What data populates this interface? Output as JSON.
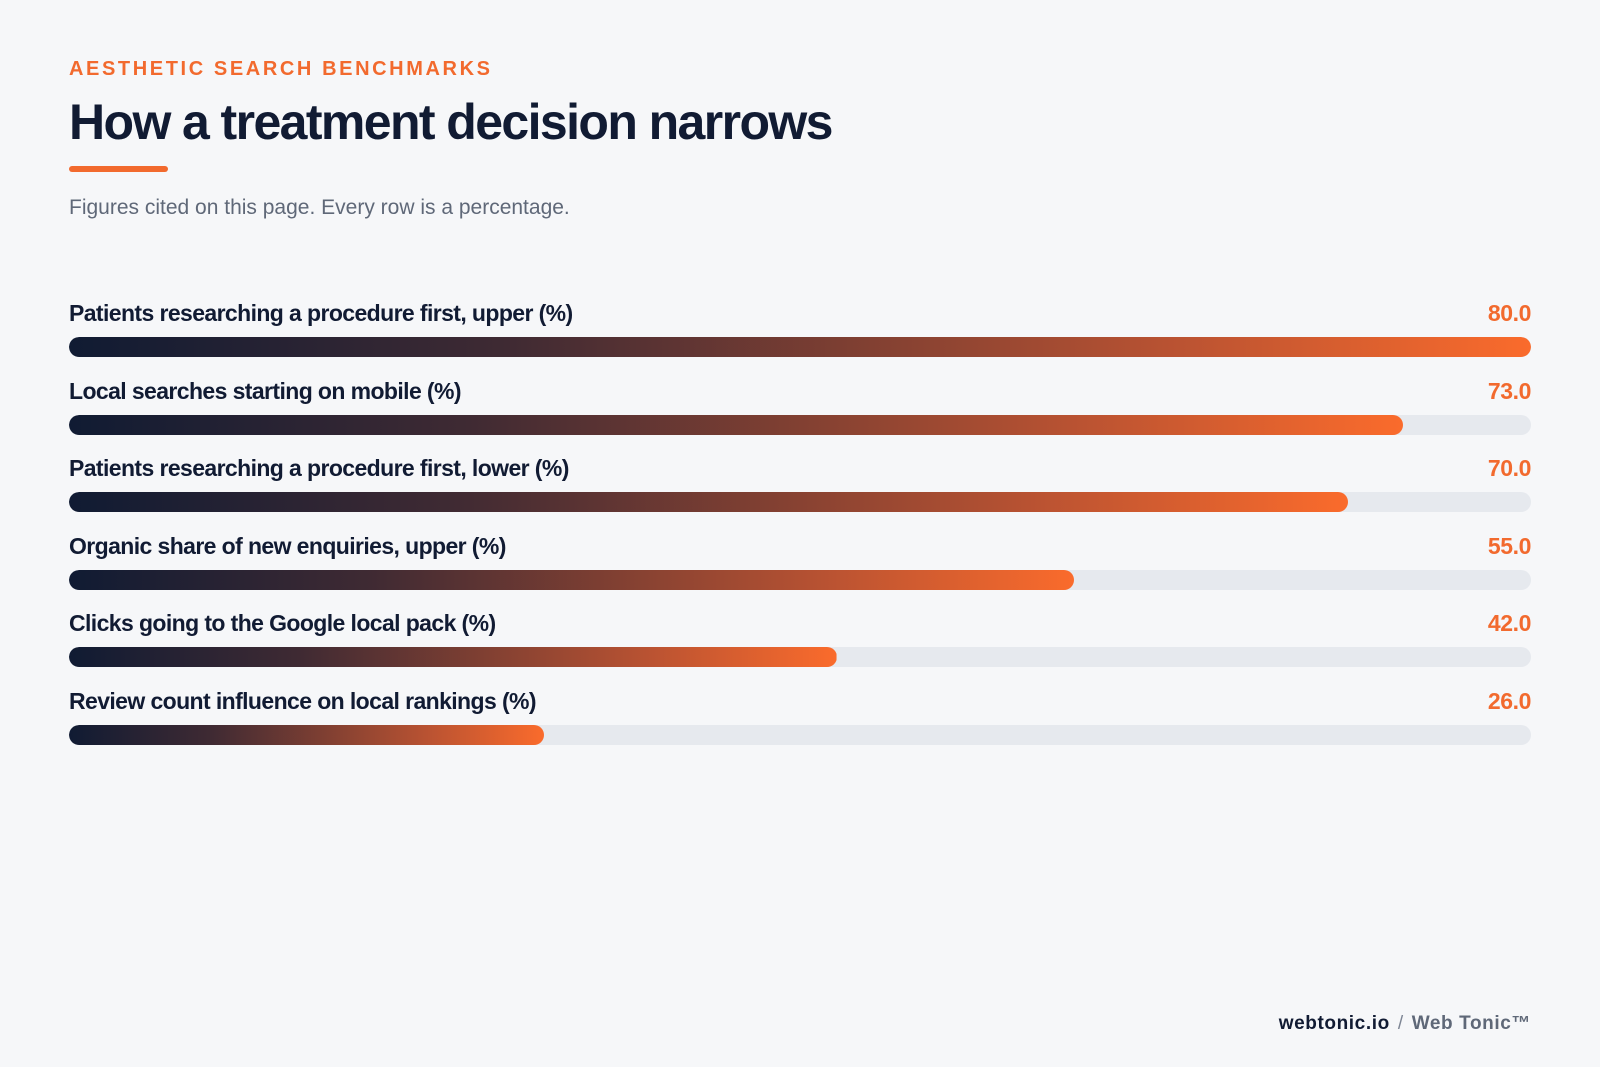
{
  "header": {
    "eyebrow": "AESTHETIC SEARCH BENCHMARKS",
    "title": "How a treatment decision narrows",
    "subtitle": "Figures cited on this page. Every row is a percentage."
  },
  "colors": {
    "accent": "#f26a2e",
    "navy": "#111b33",
    "track": "#e6e9ee",
    "background": "#f6f7f9"
  },
  "chart_data": {
    "type": "bar",
    "orientation": "horizontal",
    "title": "How a treatment decision narrows",
    "subtitle": "Figures cited on this page. Every row is a percentage.",
    "xlim": [
      0,
      80
    ],
    "categories": [
      "Patients researching a procedure first, upper (%)",
      "Local searches starting on mobile (%)",
      "Patients researching a procedure first, lower (%)",
      "Organic share of new enquiries, upper (%)",
      "Clicks going to the Google local pack (%)",
      "Review count influence on local rankings (%)"
    ],
    "values": [
      80.0,
      73.0,
      70.0,
      55.0,
      42.0,
      26.0
    ],
    "value_labels": [
      "80.0",
      "73.0",
      "70.0",
      "55.0",
      "42.0",
      "26.0"
    ]
  },
  "footer": {
    "domain": "webtonic.io",
    "separator": "/",
    "brand": "Web Tonic™"
  }
}
